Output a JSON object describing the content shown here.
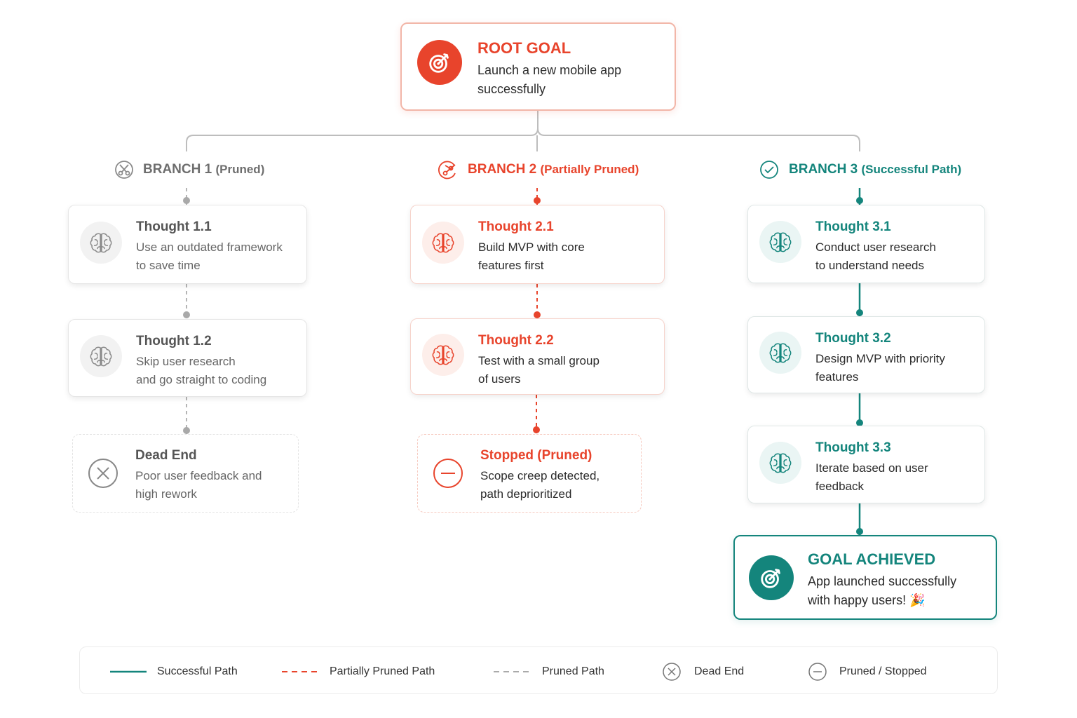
{
  "root": {
    "title": "ROOT GOAL",
    "text": [
      "Launch a new mobile app",
      "successfully"
    ]
  },
  "branches": [
    {
      "label": "BRANCH 1",
      "status": "(Pruned)",
      "nodes": [
        {
          "title": "Thought 1.1",
          "text": [
            "Use an outdated framework",
            "to save time"
          ]
        },
        {
          "title": "Thought 1.2",
          "text": [
            "Skip user research",
            "and go straight to coding"
          ]
        }
      ],
      "end": {
        "title": "Dead End",
        "text": [
          "Poor user feedback and",
          "high rework"
        ]
      }
    },
    {
      "label": "BRANCH 2",
      "status": "(Partially Pruned)",
      "nodes": [
        {
          "title": "Thought 2.1",
          "text": [
            "Build MVP with core",
            "features first"
          ]
        },
        {
          "title": "Thought 2.2",
          "text": [
            "Test with a small group",
            "of users"
          ]
        }
      ],
      "end": {
        "title": "Stopped (Pruned)",
        "text": [
          "Scope creep detected,",
          "path deprioritized"
        ]
      }
    },
    {
      "label": "BRANCH 3",
      "status": "(Successful Path)",
      "nodes": [
        {
          "title": "Thought 3.1",
          "text": [
            "Conduct user research",
            "to understand needs"
          ]
        },
        {
          "title": "Thought 3.2",
          "text": [
            "Design MVP with priority",
            "features"
          ]
        },
        {
          "title": "Thought 3.3",
          "text": [
            "Iterate based on user",
            "feedback"
          ]
        }
      ],
      "end": {
        "title": "GOAL ACHIEVED",
        "text": [
          "App launched successfully",
          "with happy users! 🎉"
        ]
      }
    }
  ],
  "legend": [
    "Successful Path",
    "Partially Pruned Path",
    "Pruned Path",
    "Dead End",
    "Pruned / Stopped"
  ]
}
